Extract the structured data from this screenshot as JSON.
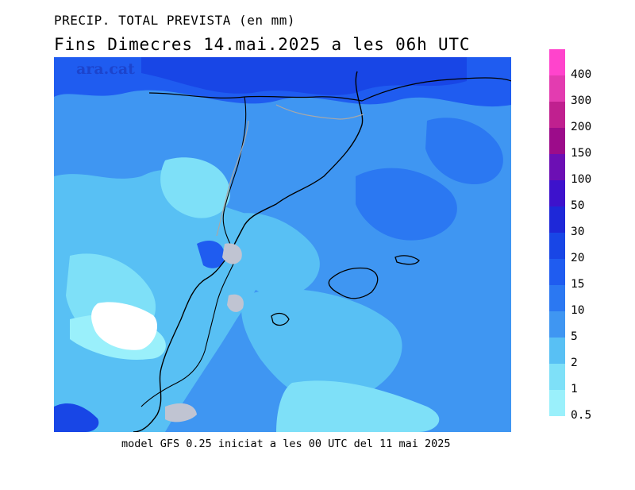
{
  "title": {
    "line1": "PRECIP. TOTAL PREVISTA (en mm)",
    "line2": "Fins Dimecres  14.mai.2025  a les  06h  UTC"
  },
  "map": {
    "credit": "ara.cat",
    "background_color": "#5fd0f5"
  },
  "footer": "model GFS 0.25 iniciat a les 00 UTC del 11 mai 2025",
  "legend": [
    {
      "label": "400",
      "color": "#ff44cc"
    },
    {
      "label": "300",
      "color": "#e33cb0"
    },
    {
      "label": "200",
      "color": "#c0208f"
    },
    {
      "label": "150",
      "color": "#9c0c8a"
    },
    {
      "label": "100",
      "color": "#6c0fb4"
    },
    {
      "label": "50",
      "color": "#3d12cc"
    },
    {
      "label": "30",
      "color": "#1e28d8"
    },
    {
      "label": "20",
      "color": "#1846e6"
    },
    {
      "label": "15",
      "color": "#1f5cf0"
    },
    {
      "label": "10",
      "color": "#2b78f2"
    },
    {
      "label": "5",
      "color": "#3f96f2"
    },
    {
      "label": "2",
      "color": "#58c0f4"
    },
    {
      "label": "1",
      "color": "#7ee0f8"
    },
    {
      "label": "0.5",
      "color": "#9af0fb"
    }
  ]
}
